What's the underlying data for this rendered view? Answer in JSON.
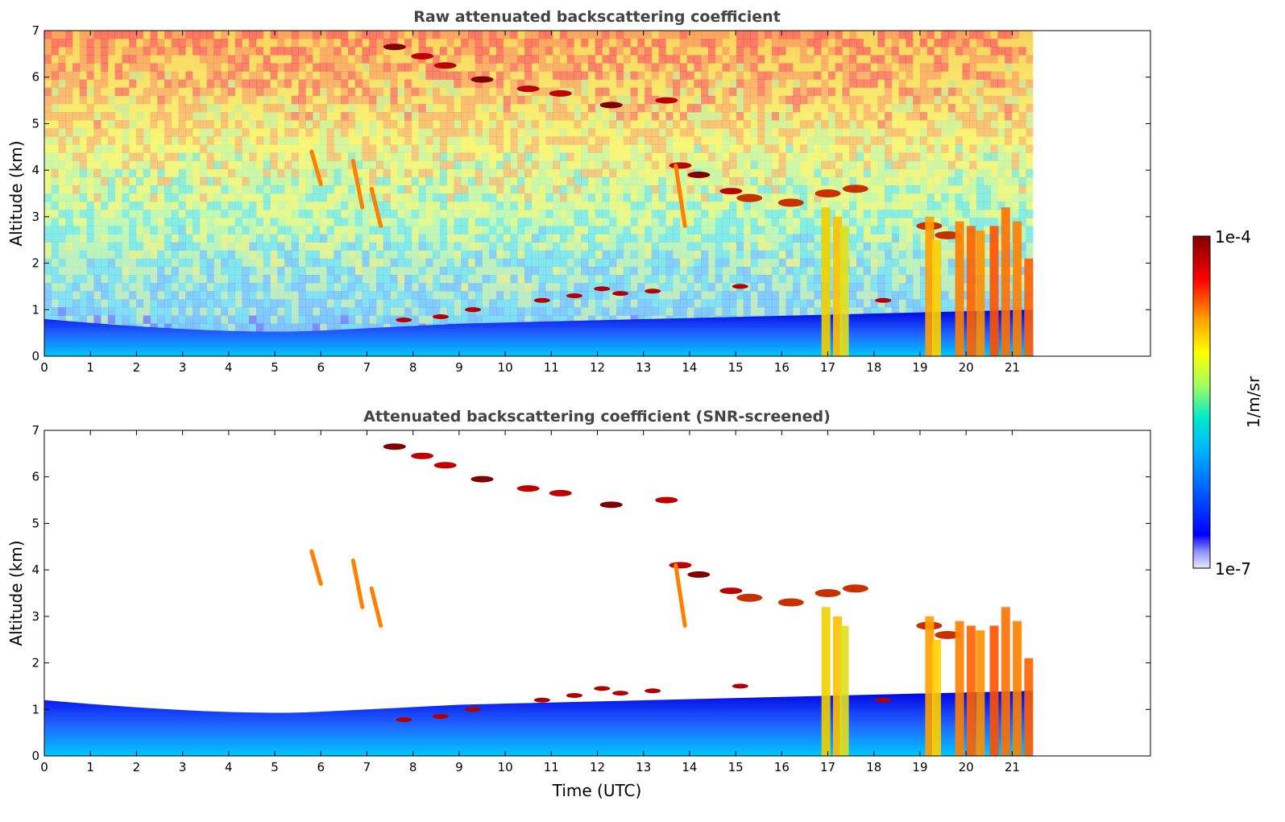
{
  "chart_data": [
    {
      "type": "heatmap",
      "title": "Raw attenuated backscattering coefficient",
      "xlabel": "",
      "ylabel": "Altitude (km)",
      "xlim": [
        0,
        24
      ],
      "ylim": [
        0,
        7
      ],
      "x_ticks": [
        "0",
        "1",
        "2",
        "3",
        "4",
        "5",
        "6",
        "7",
        "8",
        "9",
        "10",
        "11",
        "12",
        "13",
        "14",
        "15",
        "16",
        "17",
        "18",
        "19",
        "20",
        "21"
      ],
      "y_ticks": [
        "0",
        "1",
        "2",
        "3",
        "4",
        "5",
        "6",
        "7"
      ],
      "data_end_time": 21.45,
      "features": [
        {
          "name": "boundary-layer",
          "t": [
            0,
            21.45
          ],
          "alt": [
            0,
            0.6
          ]
        },
        {
          "name": "cirrus-descending",
          "t": [
            7.6,
            14.9
          ],
          "alt_start": 6.7,
          "alt_end": 3.5
        },
        {
          "name": "low-cloud-layer",
          "t": [
            7.8,
            9.5
          ],
          "alt": [
            0.75,
            1.0
          ]
        },
        {
          "name": "precipitation",
          "t": [
            16.9,
            21.45
          ],
          "alt": [
            0,
            3.3
          ]
        }
      ]
    },
    {
      "type": "heatmap",
      "title": "Attenuated backscattering coefficient (SNR-screened)",
      "xlabel": "Time (UTC)",
      "ylabel": "Altitude (km)",
      "xlim": [
        0,
        24
      ],
      "ylim": [
        0,
        7
      ],
      "x_ticks": [
        "0",
        "1",
        "2",
        "3",
        "4",
        "5",
        "6",
        "7",
        "8",
        "9",
        "10",
        "11",
        "12",
        "13",
        "14",
        "15",
        "16",
        "17",
        "18",
        "19",
        "20",
        "21"
      ],
      "y_ticks": [
        "0",
        "1",
        "2",
        "3",
        "4",
        "5",
        "6",
        "7"
      ],
      "data_end_time": 21.45,
      "features": [
        {
          "name": "boundary-layer",
          "t": [
            0,
            21.45
          ],
          "alt": [
            0,
            1.3
          ]
        },
        {
          "name": "cirrus-descending",
          "t": [
            7.6,
            14.9
          ],
          "alt_start": 6.7,
          "alt_end": 3.5
        },
        {
          "name": "precipitation",
          "t": [
            16.9,
            21.45
          ],
          "alt": [
            0,
            3.3
          ]
        }
      ]
    }
  ],
  "colorbar": {
    "label": "1/m/sr",
    "max_label": "1e-4",
    "min_label": "1e-7",
    "scale": "log",
    "range": [
      1e-07,
      0.0001
    ],
    "colormap": [
      "#e8e8ff",
      "#0000ff",
      "#00a0ff",
      "#00e0e0",
      "#a0ff60",
      "#ffff00",
      "#ff8000",
      "#ff0000",
      "#800000"
    ]
  }
}
